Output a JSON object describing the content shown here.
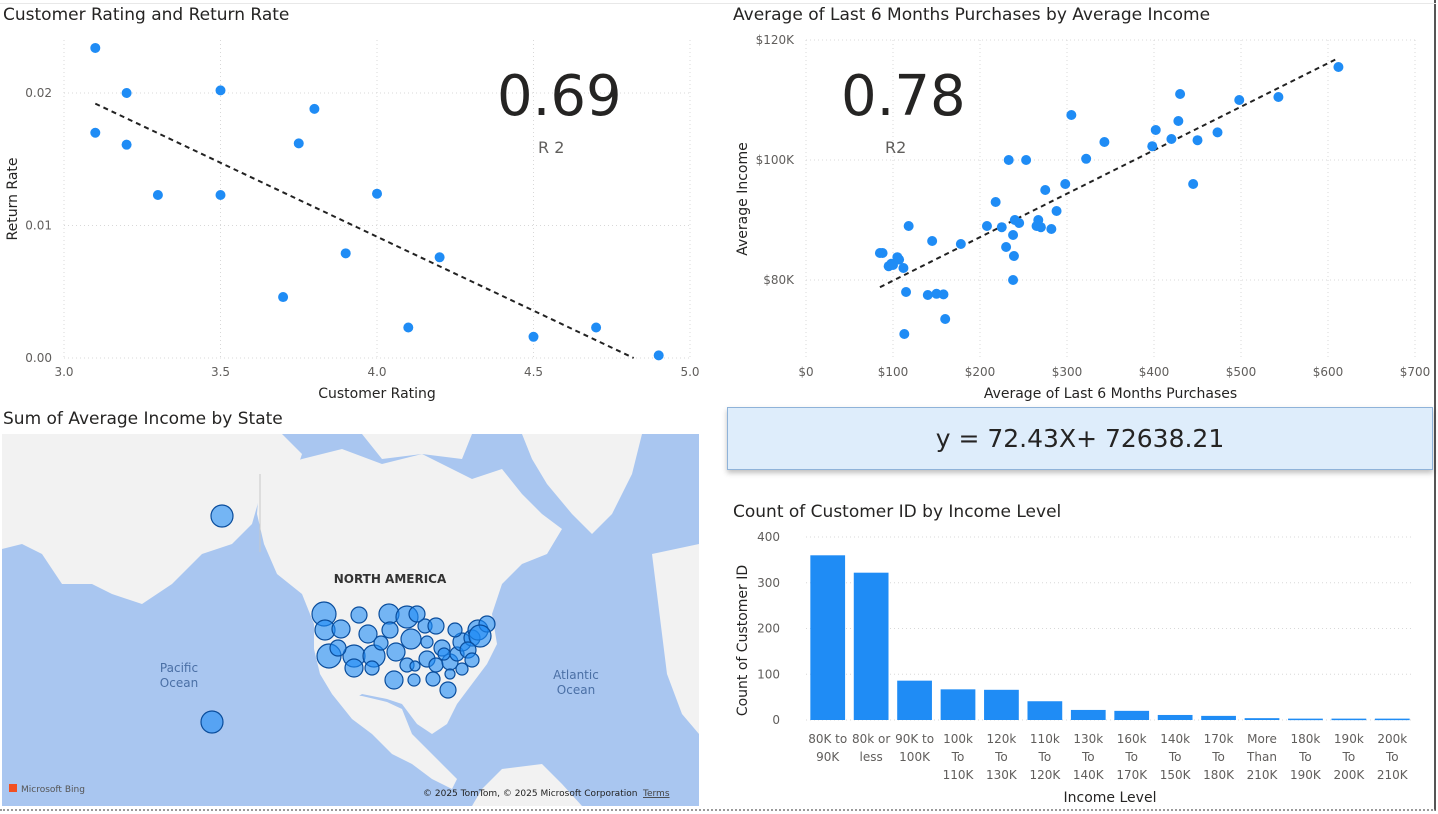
{
  "scatter1": {
    "title": "Customer Rating and Return Rate",
    "kpi_value": "0.69",
    "kpi_label": "R 2",
    "chart_data": {
      "type": "scatter",
      "xlabel": "Customer Rating",
      "ylabel": "Return Rate",
      "xlim": [
        3.0,
        5.0
      ],
      "ylim": [
        0.0,
        0.024
      ],
      "xticks": [
        "3.0",
        "3.5",
        "4.0",
        "4.5",
        "5.0"
      ],
      "yticks": [
        "0.00",
        "0.01",
        "0.02"
      ],
      "x": [
        3.1,
        3.1,
        3.2,
        3.2,
        3.3,
        3.5,
        3.5,
        3.7,
        3.75,
        3.8,
        3.9,
        4.0,
        4.1,
        4.2,
        4.5,
        4.7,
        4.9
      ],
      "y": [
        0.0234,
        0.017,
        0.02,
        0.0161,
        0.0123,
        0.0202,
        0.0123,
        0.0046,
        0.0162,
        0.0188,
        0.0079,
        0.0124,
        0.0023,
        0.0076,
        0.0016,
        0.0023,
        0.0002
      ],
      "trendline": {
        "x": [
          3.1,
          4.82
        ],
        "y": [
          0.0192,
          0.0
        ]
      },
      "grid": true
    }
  },
  "scatter2": {
    "title": "Average of Last 6 Months Purchases by Average Income",
    "kpi_value": "0.78",
    "kpi_label": "R2",
    "chart_data": {
      "type": "scatter",
      "xlabel": "Average of Last 6 Months Purchases",
      "ylabel": "Average Income",
      "xlim": [
        0,
        700
      ],
      "ylim": [
        67000,
        120000
      ],
      "xticks": [
        "$0",
        "$100",
        "$200",
        "$300",
        "$400",
        "$500",
        "$600",
        "$700"
      ],
      "yticks": [
        "$80K",
        "$100K",
        "$120K"
      ],
      "ytick_values": [
        80000,
        100000,
        120000
      ],
      "x": [
        85,
        88,
        95,
        98,
        100,
        105,
        107,
        112,
        115,
        113,
        118,
        145,
        140,
        150,
        158,
        160,
        178,
        208,
        218,
        225,
        230,
        233,
        238,
        239,
        238,
        240,
        245,
        253,
        265,
        267,
        270,
        275,
        282,
        288,
        298,
        305,
        322,
        343,
        398,
        402,
        420,
        428,
        430,
        445,
        450,
        473,
        498,
        543,
        612
      ],
      "y": [
        84500,
        84500,
        82300,
        82700,
        82500,
        83800,
        83400,
        82000,
        78000,
        71000,
        89000,
        86500,
        77500,
        77700,
        77600,
        73500,
        86000,
        89000,
        93000,
        88800,
        85500,
        100000,
        87500,
        84000,
        80000,
        90000,
        89500,
        100000,
        89000,
        90000,
        88800,
        95000,
        88500,
        91500,
        96000,
        107500,
        100200,
        103000,
        102300,
        105000,
        103500,
        106500,
        111000,
        96000,
        103300,
        104600,
        110000,
        110500,
        115500
      ],
      "trendline": {
        "x": [
          85,
          612
        ],
        "y": [
          78800,
          117000
        ]
      },
      "grid": true
    }
  },
  "equation": "y = 72.43X+ 72638.21",
  "map": {
    "title": "Sum of Average Income by State",
    "labels": {
      "continent": "NORTH AMERICA",
      "pacific": "Pacific Ocean",
      "atlantic": "Atlantic Ocean"
    },
    "pacific_lines": [
      "Pacific",
      "Ocean"
    ],
    "atlantic_lines": [
      "Atlantic",
      "Ocean"
    ],
    "logo_text": "Microsoft Bing",
    "copyright": "© 2025 TomTom, © 2025 Microsoft Corporation",
    "terms": "Terms",
    "land_color": "#f2f2f2",
    "water_color": "#a9c6f0",
    "bubble_color": "#1f8cf5"
  },
  "bar": {
    "title": "Count of Customer ID by Income Level",
    "chart_data": {
      "type": "bar",
      "xlabel": "Income Level",
      "ylabel": "Count of Customer ID",
      "ylim": [
        0,
        400
      ],
      "yticks": [
        "0",
        "100",
        "200",
        "300",
        "400"
      ],
      "categories": [
        [
          "80K to",
          "90K"
        ],
        [
          "80k or",
          "less"
        ],
        [
          "90K to",
          "100K"
        ],
        [
          "100k",
          "To",
          "110K"
        ],
        [
          "120k",
          "To",
          "130K"
        ],
        [
          "110k",
          "To",
          "120K"
        ],
        [
          "130k",
          "To",
          "140K"
        ],
        [
          "160k",
          "To",
          "170K"
        ],
        [
          "140k",
          "To",
          "150K"
        ],
        [
          "170k",
          "To",
          "180K"
        ],
        [
          "More",
          "Than",
          "210K"
        ],
        [
          "180k",
          "To",
          "190K"
        ],
        [
          "190k",
          "To",
          "200K"
        ],
        [
          "200k",
          "To",
          "210K"
        ]
      ],
      "values": [
        360,
        322,
        86,
        67,
        66,
        41,
        22,
        20,
        11,
        9,
        4,
        3,
        3,
        3
      ],
      "color": "#1f8cf5",
      "grid": true
    }
  },
  "colors": {
    "accent": "#1f8cf5",
    "trend": "#222222",
    "grid": "#d8d8d8"
  }
}
